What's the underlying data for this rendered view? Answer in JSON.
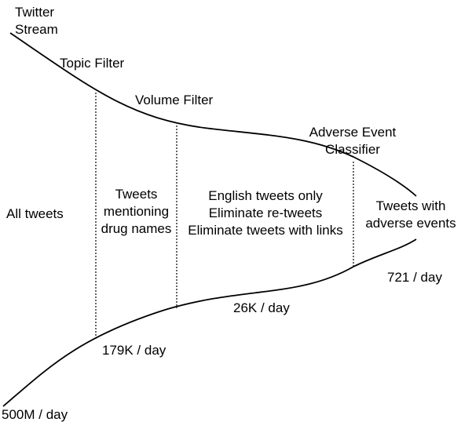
{
  "stages": {
    "source": [
      "Twitter",
      "Stream"
    ],
    "topic_filter": "Topic Filter",
    "volume_filter": "Volume Filter",
    "classifier": [
      "Adverse Event",
      "Classifier"
    ]
  },
  "sections": {
    "all": "All tweets",
    "drug": [
      "Tweets",
      "mentioning",
      "drug names"
    ],
    "volume": [
      "English tweets only",
      "Eliminate re-tweets",
      "Eliminate tweets with links"
    ],
    "adverse": [
      "Tweets with",
      "adverse events"
    ]
  },
  "volumes": {
    "stream": "500M / day",
    "after_topic": "179K / day",
    "after_volume": "26K / day",
    "after_classifier": "721 / day"
  },
  "colors": {
    "line": "#000000",
    "background": "#ffffff"
  }
}
